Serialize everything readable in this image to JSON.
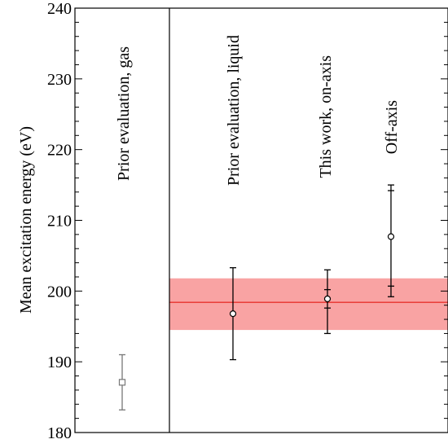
{
  "chart_data": {
    "type": "scatter",
    "ylabel": "Mean excitation energy (eV)",
    "ylim": [
      180,
      240
    ],
    "yticks": [
      "180",
      "190",
      "200",
      "210",
      "220",
      "230",
      "240"
    ],
    "xlabel": "",
    "grid": false,
    "annotations": [
      "Prior evaluation, gas",
      "Prior evaluation, liquid",
      "This work, on-axis",
      "Off-axis"
    ],
    "band": {
      "center": 198.4,
      "low": 194.5,
      "high": 201.8,
      "color": "#f9a3a3",
      "line_color": "#e8322e"
    },
    "points": [
      {
        "label": "Prior evaluation, gas",
        "y": 187.1,
        "err_low": 183.2,
        "err_high": 191.0,
        "marker": "square",
        "color": "#777777"
      },
      {
        "label": "Prior evaluation, liquid",
        "y": 196.8,
        "err_low": 190.3,
        "err_high": 203.3,
        "marker": "circle",
        "color": "#000000"
      },
      {
        "label": "This work, on-axis",
        "y": 198.9,
        "err_low": 194.0,
        "err_high": 203.0,
        "inner_low": 197.6,
        "inner_high": 200.2,
        "marker": "circle",
        "color": "#000000"
      },
      {
        "label": "Off-axis",
        "y": 207.7,
        "err_low": 199.2,
        "err_high": 215.0,
        "inner_low": 200.7,
        "inner_high": 214.2,
        "marker": "circle",
        "color": "#000000"
      }
    ]
  }
}
